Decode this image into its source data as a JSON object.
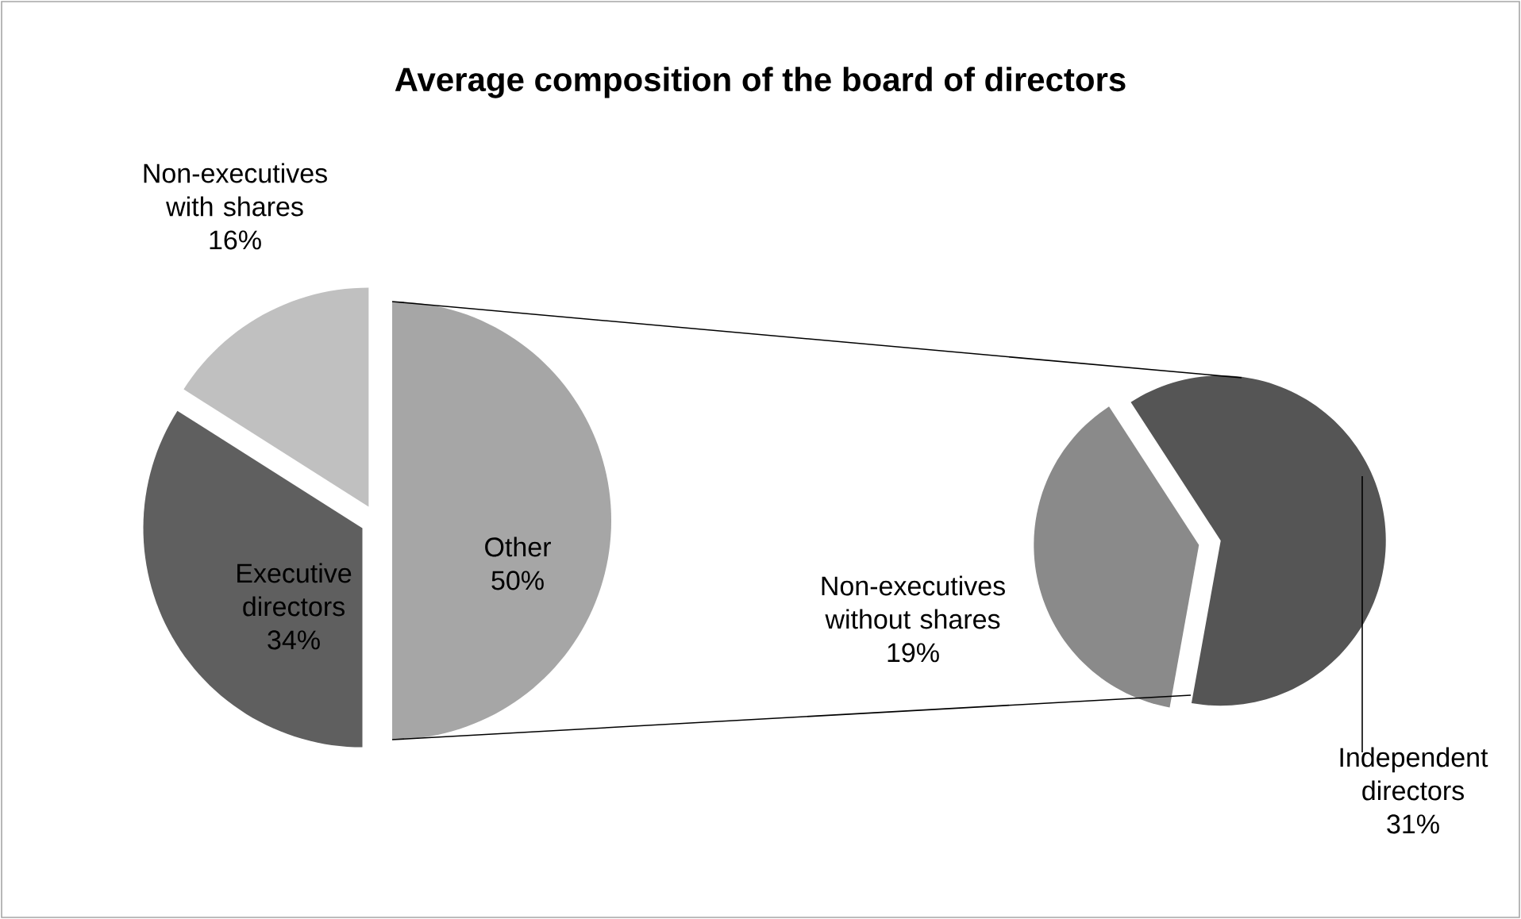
{
  "chart_data": [
    {
      "type": "pie",
      "title": "Average composition of the board of directors",
      "categories": [
        "Other",
        "Executive directors",
        "Non-executives with shares"
      ],
      "values": [
        50,
        34,
        16
      ],
      "value_labels": [
        "50%",
        "34%",
        "16%"
      ],
      "colors": [
        "#a6a6a6",
        "#5f5f5f",
        "#c0c0c0"
      ]
    },
    {
      "type": "pie",
      "categories": [
        "Independent directors",
        "Non-executives without shares"
      ],
      "values": [
        31,
        19
      ],
      "value_labels": [
        "31%",
        "19%"
      ],
      "colors": [
        "#555555",
        "#8a8a8a"
      ]
    }
  ]
}
